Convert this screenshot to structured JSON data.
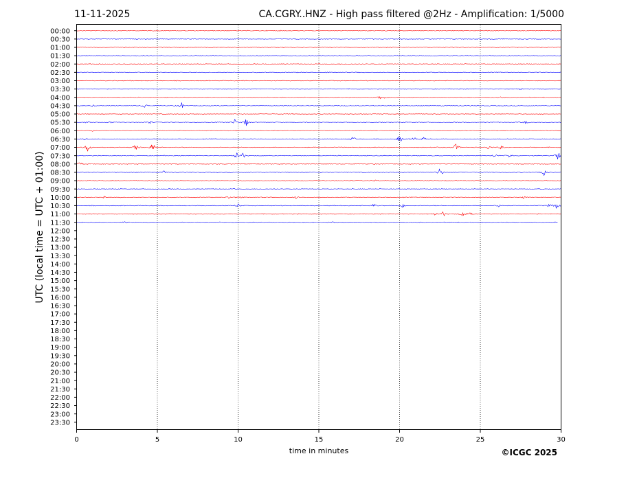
{
  "header": {
    "date": "11-11-2025",
    "title": "CA.CGRY..HNZ - High pass filtered @2Hz - Amplification: 1/5000"
  },
  "copyright": "©ICGC 2025",
  "chart_data": {
    "type": "line",
    "xlabel": "time in minutes",
    "ylabel": "UTC (local time = UTC + 01:00)",
    "xlim": [
      0,
      30
    ],
    "x_ticks": [
      "0",
      "5",
      "10",
      "15",
      "20",
      "25",
      "30"
    ],
    "grid": "vertical dotted lines every 5 minutes",
    "row_labels": [
      "00:00",
      "00:30",
      "01:00",
      "01:30",
      "02:00",
      "02:30",
      "03:00",
      "03:30",
      "04:00",
      "04:30",
      "05:00",
      "05:30",
      "06:00",
      "06:30",
      "07:00",
      "07:30",
      "08:00",
      "08:30",
      "09:00",
      "09:30",
      "10:00",
      "10:30",
      "11:00",
      "11:30",
      "12:00",
      "12:30",
      "13:00",
      "13:30",
      "14:00",
      "14:30",
      "15:00",
      "15:30",
      "16:00",
      "16:30",
      "17:00",
      "17:30",
      "18:00",
      "18:30",
      "19:00",
      "19:30",
      "20:00",
      "20:30",
      "21:00",
      "21:30",
      "22:00",
      "22:30",
      "23:00",
      "23:30"
    ],
    "colors": {
      "even_rows": "#ff0000",
      "odd_rows": "#0000ff"
    },
    "traces": [
      {
        "row": 0,
        "end": 30,
        "events": []
      },
      {
        "row": 1,
        "end": 30,
        "events": [
          {
            "t": 25.8,
            "a": 1
          }
        ]
      },
      {
        "row": 2,
        "end": 30,
        "events": []
      },
      {
        "row": 3,
        "end": 30,
        "events": []
      },
      {
        "row": 4,
        "end": 30,
        "events": []
      },
      {
        "row": 5,
        "end": 30,
        "events": []
      },
      {
        "row": 6,
        "end": 30,
        "events": []
      },
      {
        "row": 7,
        "end": 30,
        "events": [
          {
            "t": 27.5,
            "a": 2
          }
        ]
      },
      {
        "row": 8,
        "end": 30,
        "events": [
          {
            "t": 18.9,
            "a": 6
          },
          {
            "t": 26.2,
            "a": 1
          }
        ]
      },
      {
        "row": 9,
        "end": 30,
        "events": [
          {
            "t": 4.2,
            "a": 4
          },
          {
            "t": 6.5,
            "a": 5
          },
          {
            "t": 1.0,
            "a": 1
          }
        ]
      },
      {
        "row": 10,
        "end": 30,
        "events": []
      },
      {
        "row": 11,
        "end": 30,
        "events": [
          {
            "t": 0.7,
            "a": 2
          },
          {
            "t": 2.0,
            "a": 2
          },
          {
            "t": 4.5,
            "a": 3
          },
          {
            "t": 9.8,
            "a": 5
          },
          {
            "t": 10.5,
            "a": 6
          },
          {
            "t": 27.8,
            "a": 2
          }
        ]
      },
      {
        "row": 12,
        "end": 30,
        "events": [
          {
            "t": 1.0,
            "a": 1
          }
        ]
      },
      {
        "row": 13,
        "end": 30,
        "events": [
          {
            "t": 0.5,
            "a": 2
          },
          {
            "t": 17.1,
            "a": 4
          },
          {
            "t": 20.0,
            "a": 6
          },
          {
            "t": 20.9,
            "a": 3
          },
          {
            "t": 21.5,
            "a": 2
          }
        ]
      },
      {
        "row": 14,
        "end": 30,
        "events": [
          {
            "t": 0.7,
            "a": 8
          },
          {
            "t": 3.7,
            "a": 6
          },
          {
            "t": 4.7,
            "a": 7
          },
          {
            "t": 23.5,
            "a": 6
          },
          {
            "t": 25.5,
            "a": 3
          },
          {
            "t": 26.3,
            "a": 3
          }
        ]
      },
      {
        "row": 15,
        "end": 30,
        "events": [
          {
            "t": 9.9,
            "a": 7
          },
          {
            "t": 10.3,
            "a": 4
          },
          {
            "t": 25.9,
            "a": 3
          },
          {
            "t": 26.8,
            "a": 3
          },
          {
            "t": 29.8,
            "a": 8
          }
        ]
      },
      {
        "row": 16,
        "end": 30,
        "events": [
          {
            "t": 0.2,
            "a": 3
          }
        ]
      },
      {
        "row": 17,
        "end": 30,
        "events": [
          {
            "t": 5.4,
            "a": 2
          },
          {
            "t": 22.5,
            "a": 7
          },
          {
            "t": 28.9,
            "a": 7
          }
        ]
      },
      {
        "row": 18,
        "end": 30,
        "events": [
          {
            "t": 18.5,
            "a": 1
          }
        ]
      },
      {
        "row": 19,
        "end": 30,
        "events": []
      },
      {
        "row": 20,
        "end": 30,
        "events": [
          {
            "t": 1.7,
            "a": 2
          },
          {
            "t": 9.4,
            "a": 2
          },
          {
            "t": 10.0,
            "a": 2
          },
          {
            "t": 13.6,
            "a": 2
          },
          {
            "t": 27.7,
            "a": 2
          }
        ]
      },
      {
        "row": 21,
        "end": 30,
        "events": [
          {
            "t": 10.0,
            "a": 3
          },
          {
            "t": 18.4,
            "a": 3
          },
          {
            "t": 20.2,
            "a": 3
          },
          {
            "t": 26.2,
            "a": 4
          },
          {
            "t": 29.3,
            "a": 3
          },
          {
            "t": 29.7,
            "a": 4
          }
        ]
      },
      {
        "row": 22,
        "end": 30,
        "events": [
          {
            "t": 22.2,
            "a": 3
          },
          {
            "t": 22.7,
            "a": 4
          },
          {
            "t": 23.9,
            "a": 4
          },
          {
            "t": 24.4,
            "a": 2
          }
        ]
      },
      {
        "row": 23,
        "end": 29.8,
        "events": [
          {
            "t": 3.0,
            "a": 1
          },
          {
            "t": 15.8,
            "a": 1
          }
        ]
      }
    ]
  }
}
